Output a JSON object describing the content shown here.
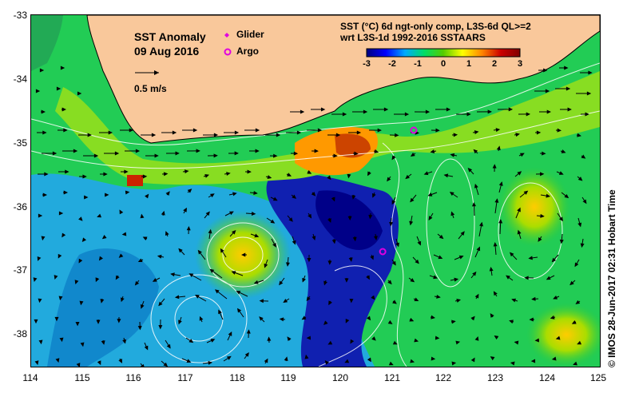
{
  "map": {
    "title": "SST Anomaly",
    "date": "09 Aug 2016",
    "scale_label": "0.5 m/s",
    "legend": [
      {
        "label": "Glider",
        "color": "#e000e0",
        "marker": "diamond-icon"
      },
      {
        "label": "Argo",
        "color": "#e000e0",
        "marker": "circle-icon"
      }
    ],
    "product_line1": "SST (°C) 6d ngt-only comp, L3S-6d QL>=2",
    "product_line2": "wrt L3S-1d 1992-2016 SSTAARS",
    "colorbar": {
      "min": -3,
      "max": 3,
      "ticks": [
        "-3",
        "-2",
        "-1",
        "0",
        "1",
        "2",
        "3"
      ],
      "colors": [
        "#000080",
        "#0000ff",
        "#00aaff",
        "#00dd66",
        "#55cc00",
        "#ffff00",
        "#ff8800",
        "#cc0000",
        "#800000"
      ]
    },
    "lon_ticks": [
      "114",
      "115",
      "116",
      "117",
      "118",
      "119",
      "120",
      "121",
      "122",
      "123",
      "124",
      "125"
    ],
    "lat_ticks": [
      "-33",
      "-34",
      "-35",
      "-36",
      "-37",
      "-38"
    ],
    "lon_range": [
      114,
      125
    ],
    "lat_range": [
      -38.5,
      -33
    ],
    "side_caption": "© IMOS 28-Jun-2017 02:31 Hobart Time",
    "land_color": "#f9c89b",
    "markers": [
      {
        "type": "argo",
        "lon": 121.4,
        "lat": -34.8
      },
      {
        "type": "argo",
        "lon": 120.8,
        "lat": -36.7
      }
    ]
  }
}
